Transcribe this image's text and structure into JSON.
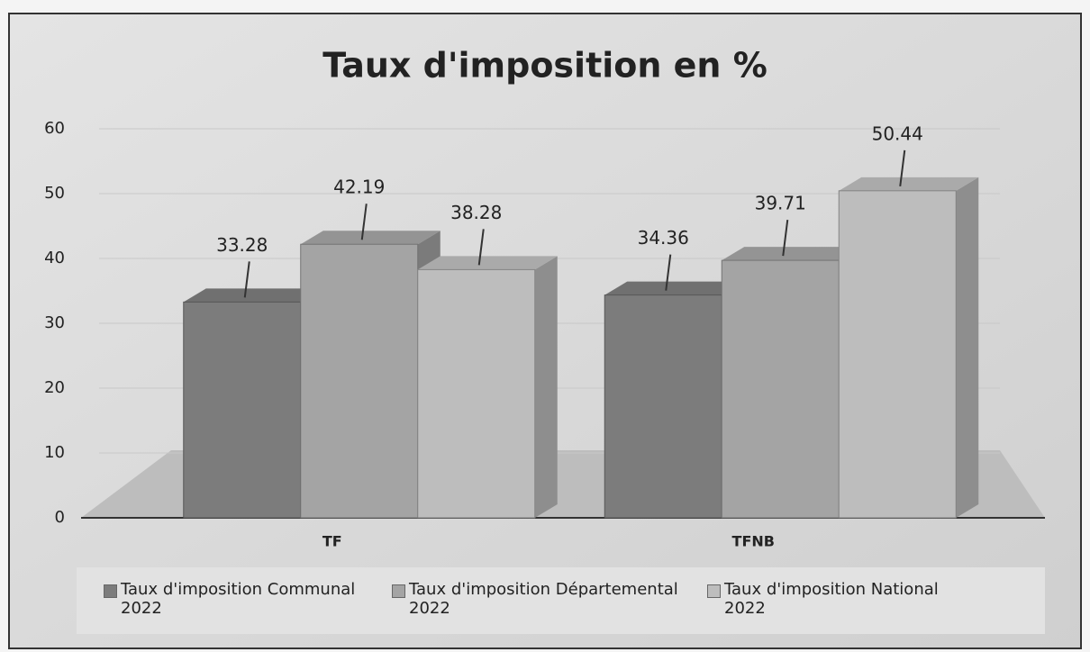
{
  "chart_data": {
    "type": "bar3d",
    "title": "Taux d'imposition en %",
    "categories": [
      "TF",
      "TFNB"
    ],
    "series": [
      {
        "name": "Taux d'imposition Communal 2022",
        "color": "#7c7c7c",
        "values": [
          33.28,
          34.36
        ]
      },
      {
        "name": "Taux d'imposition Départemental 2022",
        "color": "#a4a4a4",
        "values": [
          42.19,
          39.71
        ]
      },
      {
        "name": "Taux d'imposition National 2022",
        "color": "#bdbdbd",
        "values": [
          38.28,
          50.44
        ]
      }
    ],
    "ylim": [
      0,
      60
    ],
    "yticks": [
      0,
      10,
      20,
      30,
      40,
      50,
      60
    ],
    "grid": true,
    "legend": "bottom"
  }
}
